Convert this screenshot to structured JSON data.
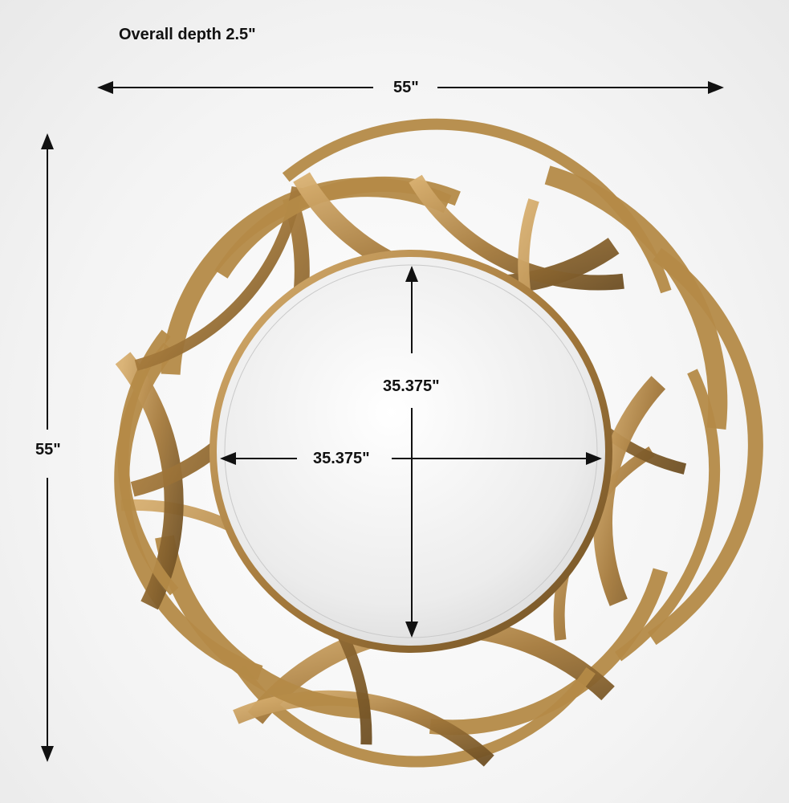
{
  "title": "Overall depth 2.5\"",
  "dimensions": {
    "overall_width": "55\"",
    "overall_height": "55\"",
    "mirror_height": "35.375\"",
    "mirror_width": "35.375\""
  },
  "colors": {
    "ribbon_light": "#d2a865",
    "ribbon_dark": "#7a5a2a",
    "frame": "#b48a47",
    "arrow": "#111111"
  }
}
